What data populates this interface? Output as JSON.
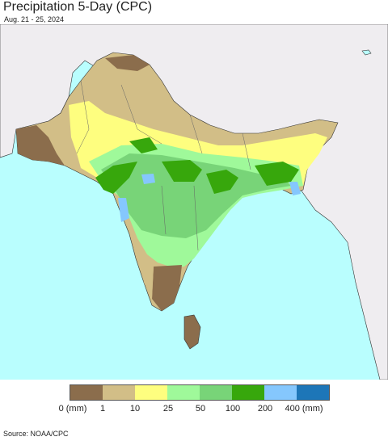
{
  "title": "Precipitation 5-Day (CPC)",
  "subtitle": "Aug. 21 - 25, 2024",
  "source": "Source: NOAA/CPC",
  "legend": {
    "colors": [
      "#8b6d4c",
      "#d2be87",
      "#fefe7f",
      "#9ff99a",
      "#78d478",
      "#37a70c",
      "#85c7fd",
      "#1d76b8"
    ],
    "ticks": [
      "0 (mm)",
      "1",
      "10",
      "25",
      "50",
      "100",
      "200",
      "400 (mm)"
    ]
  },
  "map": {
    "ocean_color": "#b9fefe",
    "outside_land_color": "#efedf0",
    "border_color": "#333333"
  }
}
